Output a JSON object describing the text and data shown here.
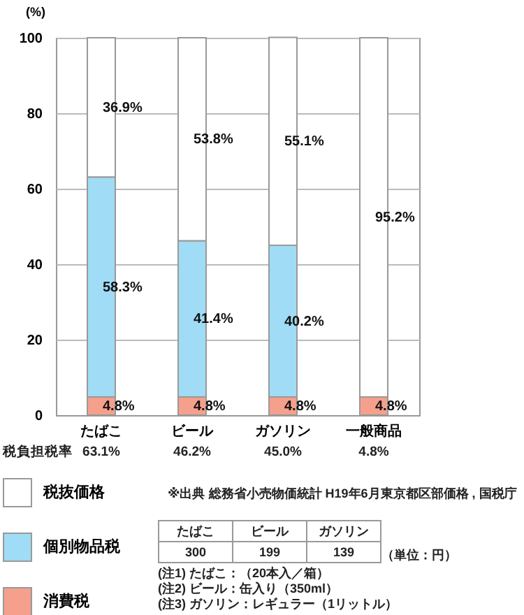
{
  "chart_data": {
    "type": "bar",
    "stacked": true,
    "ylabel": "(%)",
    "categories": [
      "たばこ",
      "ビール",
      "ガソリン",
      "一般商品"
    ],
    "series": [
      {
        "name": "消費税",
        "color": "#f5a08c",
        "values": [
          4.8,
          4.8,
          4.8,
          4.8
        ],
        "value_labels": [
          "4.8%",
          "4.8%",
          "4.8%",
          "4.8%"
        ]
      },
      {
        "name": "個別物品税",
        "color": "#a0dcf5",
        "values": [
          58.3,
          41.4,
          40.2,
          null
        ],
        "value_labels": [
          "58.3%",
          "41.4%",
          "40.2%",
          null
        ]
      },
      {
        "name": "税抜価格",
        "color": "#ffffff",
        "values": [
          36.9,
          53.8,
          55.1,
          95.2
        ],
        "value_labels": [
          "36.9%",
          "53.8%",
          "55.1%",
          "95.2%"
        ]
      }
    ],
    "ylim": [
      0,
      100
    ],
    "yticks": [
      0,
      20,
      40,
      60,
      80,
      100
    ],
    "grid": "y",
    "legend": "bottom left",
    "annotations": [
      "税負担税率",
      "63.1%",
      "46.2%",
      "45.0%",
      "4.8%",
      "※出典 総務省小売物価統計 H19年6月東京都区部価格 , 国税庁",
      "たばこ",
      "ビール",
      "ガソリン",
      "300",
      "199",
      "139",
      "（単位：円）",
      "(注1) たばこ：（20本入／箱）",
      "(注2) ビール：缶入り（350ml）",
      "(注3) ガソリン：レギュラー（1リットル）"
    ]
  }
}
